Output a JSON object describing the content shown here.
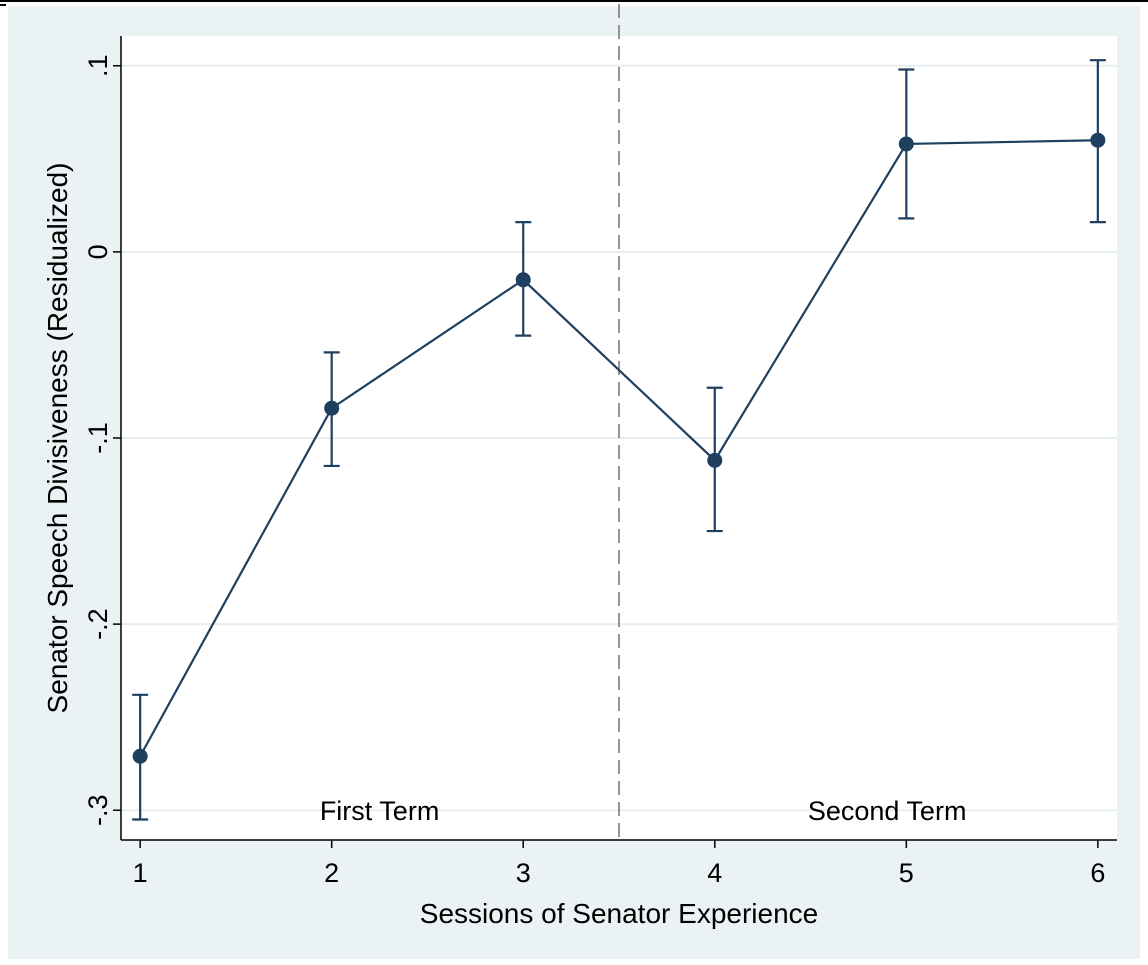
{
  "chart_data": {
    "type": "line",
    "title": "",
    "xlabel": "Sessions of Senator Experience",
    "ylabel": "Senator Speech Divisiveness (Residualized)",
    "x": [
      1,
      2,
      3,
      4,
      5,
      6
    ],
    "x_tick_labels": [
      "1",
      "2",
      "3",
      "4",
      "5",
      "6"
    ],
    "y_tick_values": [
      -0.3,
      -0.2,
      -0.1,
      0,
      0.1
    ],
    "y_tick_labels": [
      "-.3",
      "-.2",
      "-.1",
      "0",
      ".1"
    ],
    "xlim": [
      0.9,
      6.1
    ],
    "ylim": [
      -0.316,
      0.116
    ],
    "grid": true,
    "series": [
      {
        "values": [
          -0.271,
          -0.084,
          -0.015,
          -0.112,
          0.058,
          0.06
        ],
        "ci_low": [
          -0.305,
          -0.115,
          -0.045,
          -0.15,
          0.018,
          0.016
        ],
        "ci_high": [
          -0.238,
          -0.054,
          0.016,
          -0.073,
          0.098,
          0.103
        ],
        "color": "#1f3f5f"
      }
    ],
    "reference_line": {
      "x": 3.5,
      "style": "dashed",
      "color": "#888888"
    },
    "annotations": [
      {
        "text": "First Term",
        "x": 2.25,
        "y": -0.3
      },
      {
        "text": "Second Term",
        "x": 4.9,
        "y": -0.3
      }
    ],
    "colors": {
      "background": "#eaf2f3",
      "plot_area": "#ffffff",
      "grid": "#e6eeef"
    }
  }
}
